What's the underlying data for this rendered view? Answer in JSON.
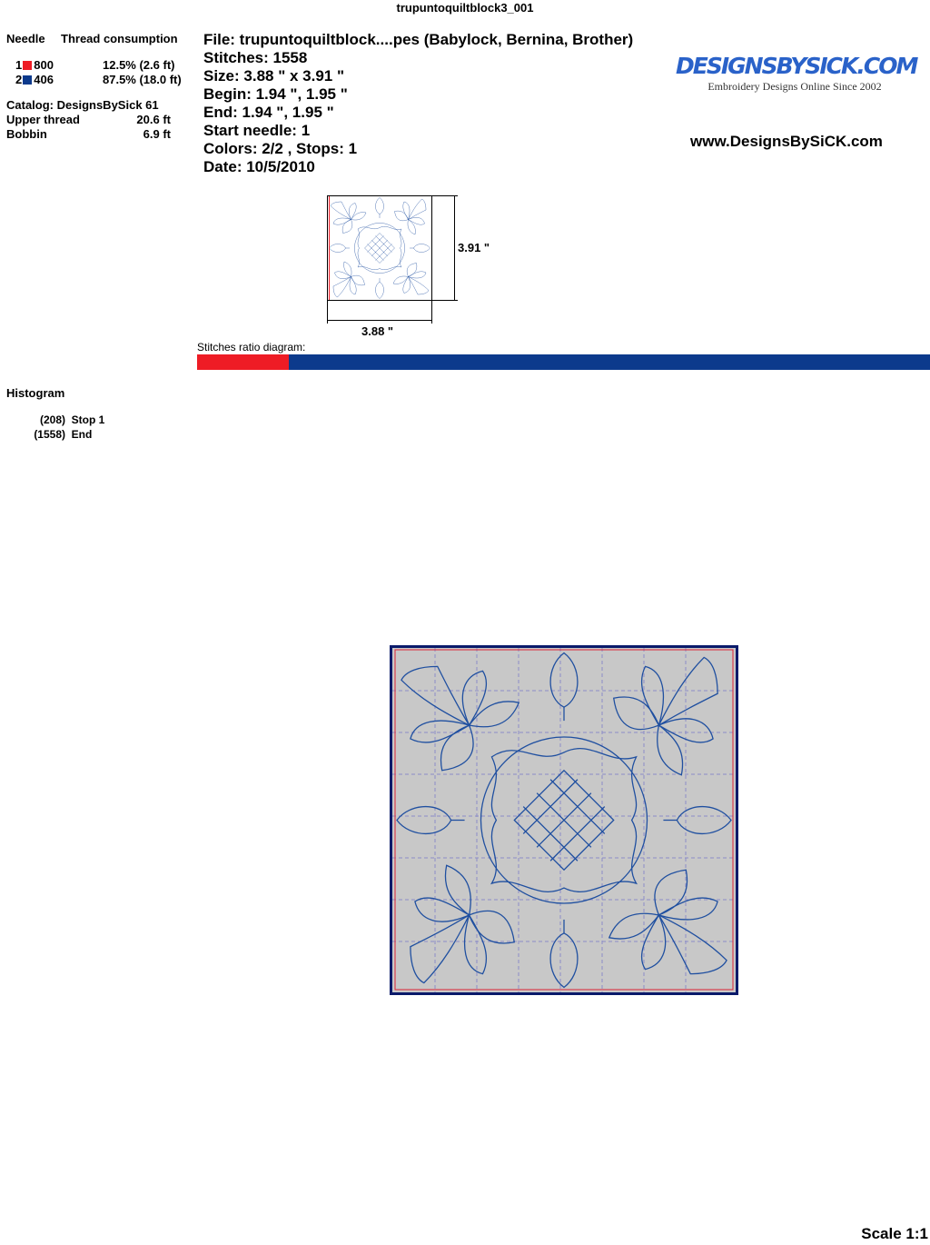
{
  "title": "trupuntoquiltblock3_001",
  "needles": {
    "header_needle": "Needle",
    "header_thread": "Thread consumption",
    "rows": [
      {
        "num": "1",
        "code": "800",
        "color": "#ee1c25",
        "usage": "12.5% (2.6 ft)"
      },
      {
        "num": "2",
        "code": "406",
        "color": "#0c3a8c",
        "usage": "87.5% (18.0 ft)"
      }
    ]
  },
  "catalog": "Catalog: DesignsBySick 61",
  "upper_label": "Upper thread",
  "upper_value": "20.6 ft",
  "bobbin_label": "Bobbin",
  "bobbin_value": "6.9 ft",
  "info": [
    "File: trupuntoquiltblock....pes  (Babylock, Bernina, Brother)",
    "Stitches: 1558",
    "Size: 3.88 \" x 3.91 \"",
    "Begin: 1.94 \", 1.95 \"",
    "End: 1.94 \", 1.95 \"",
    "Start needle: 1",
    "Colors: 2/2 , Stops: 1",
    "Date: 10/5/2010"
  ],
  "logo": {
    "name": "DESIGNSBYSICK.COM",
    "tagline": "Embroidery Designs Online Since 2002"
  },
  "website": "www.DesignsBySiCK.com",
  "thumb": {
    "height_label": "3.91 \"",
    "width_label": "3.88 \""
  },
  "ratio": {
    "label": "Stitches ratio diagram:",
    "fraction_color1": 0.125,
    "color1": "#ee1c25",
    "color2": "#0c3a8c"
  },
  "histogram": {
    "title": "Histogram",
    "rows": [
      {
        "count": "(208)",
        "label": "Stop 1"
      },
      {
        "count": "(1558)",
        "label": "End"
      }
    ]
  },
  "scale": "Scale 1:1"
}
